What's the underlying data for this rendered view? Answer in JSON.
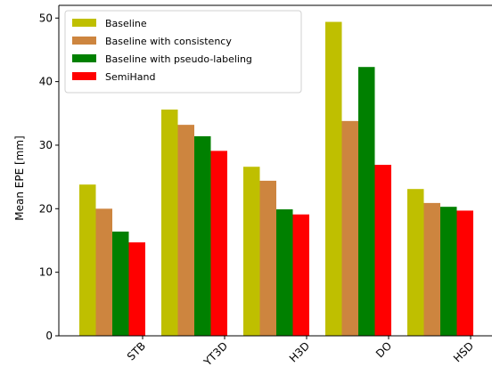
{
  "chart_data": {
    "type": "bar",
    "categories": [
      "STB",
      "YT3D",
      "H3D",
      "DO",
      "HSD"
    ],
    "series": [
      {
        "name": "Baseline",
        "color": "#bfbf00",
        "values": [
          23.8,
          35.6,
          26.6,
          49.4,
          23.1
        ]
      },
      {
        "name": "Baseline with consistency",
        "color": "#cd853f",
        "values": [
          20.0,
          33.2,
          24.4,
          33.8,
          20.9
        ]
      },
      {
        "name": "Baseline with pseudo-labeling",
        "color": "#008000",
        "values": [
          16.4,
          31.4,
          19.9,
          42.3,
          20.3
        ]
      },
      {
        "name": "SemiHand",
        "color": "#ff0000",
        "values": [
          14.7,
          29.1,
          19.1,
          26.9,
          19.7
        ]
      }
    ],
    "xlabel": "",
    "ylabel": "Mean EPE [mm]",
    "ylim": [
      0,
      52
    ],
    "yticks": [
      0,
      10,
      20,
      30,
      40,
      50
    ],
    "legend": "top-left",
    "grid": false
  }
}
